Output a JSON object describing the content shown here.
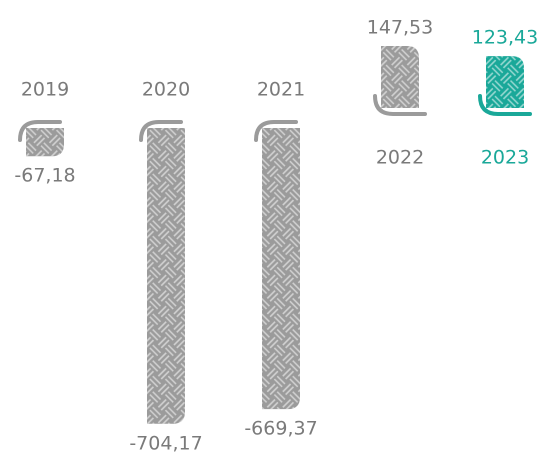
{
  "chart_data": {
    "type": "bar",
    "categories": [
      "2019",
      "2020",
      "2021",
      "2022",
      "2023"
    ],
    "values": [
      -67.18,
      -704.17,
      -669.37,
      147.53,
      123.43
    ],
    "value_labels": [
      "-67,18",
      "-704,17",
      "-669,37",
      "147,53",
      "123,43"
    ],
    "colors": [
      "#9b9b9b",
      "#9b9b9b",
      "#9b9b9b",
      "#9b9b9b",
      "#1aa899"
    ],
    "text_colors": [
      "#7a7a7a",
      "#7a7a7a",
      "#7a7a7a",
      "#7a7a7a",
      "#1aa899"
    ]
  }
}
